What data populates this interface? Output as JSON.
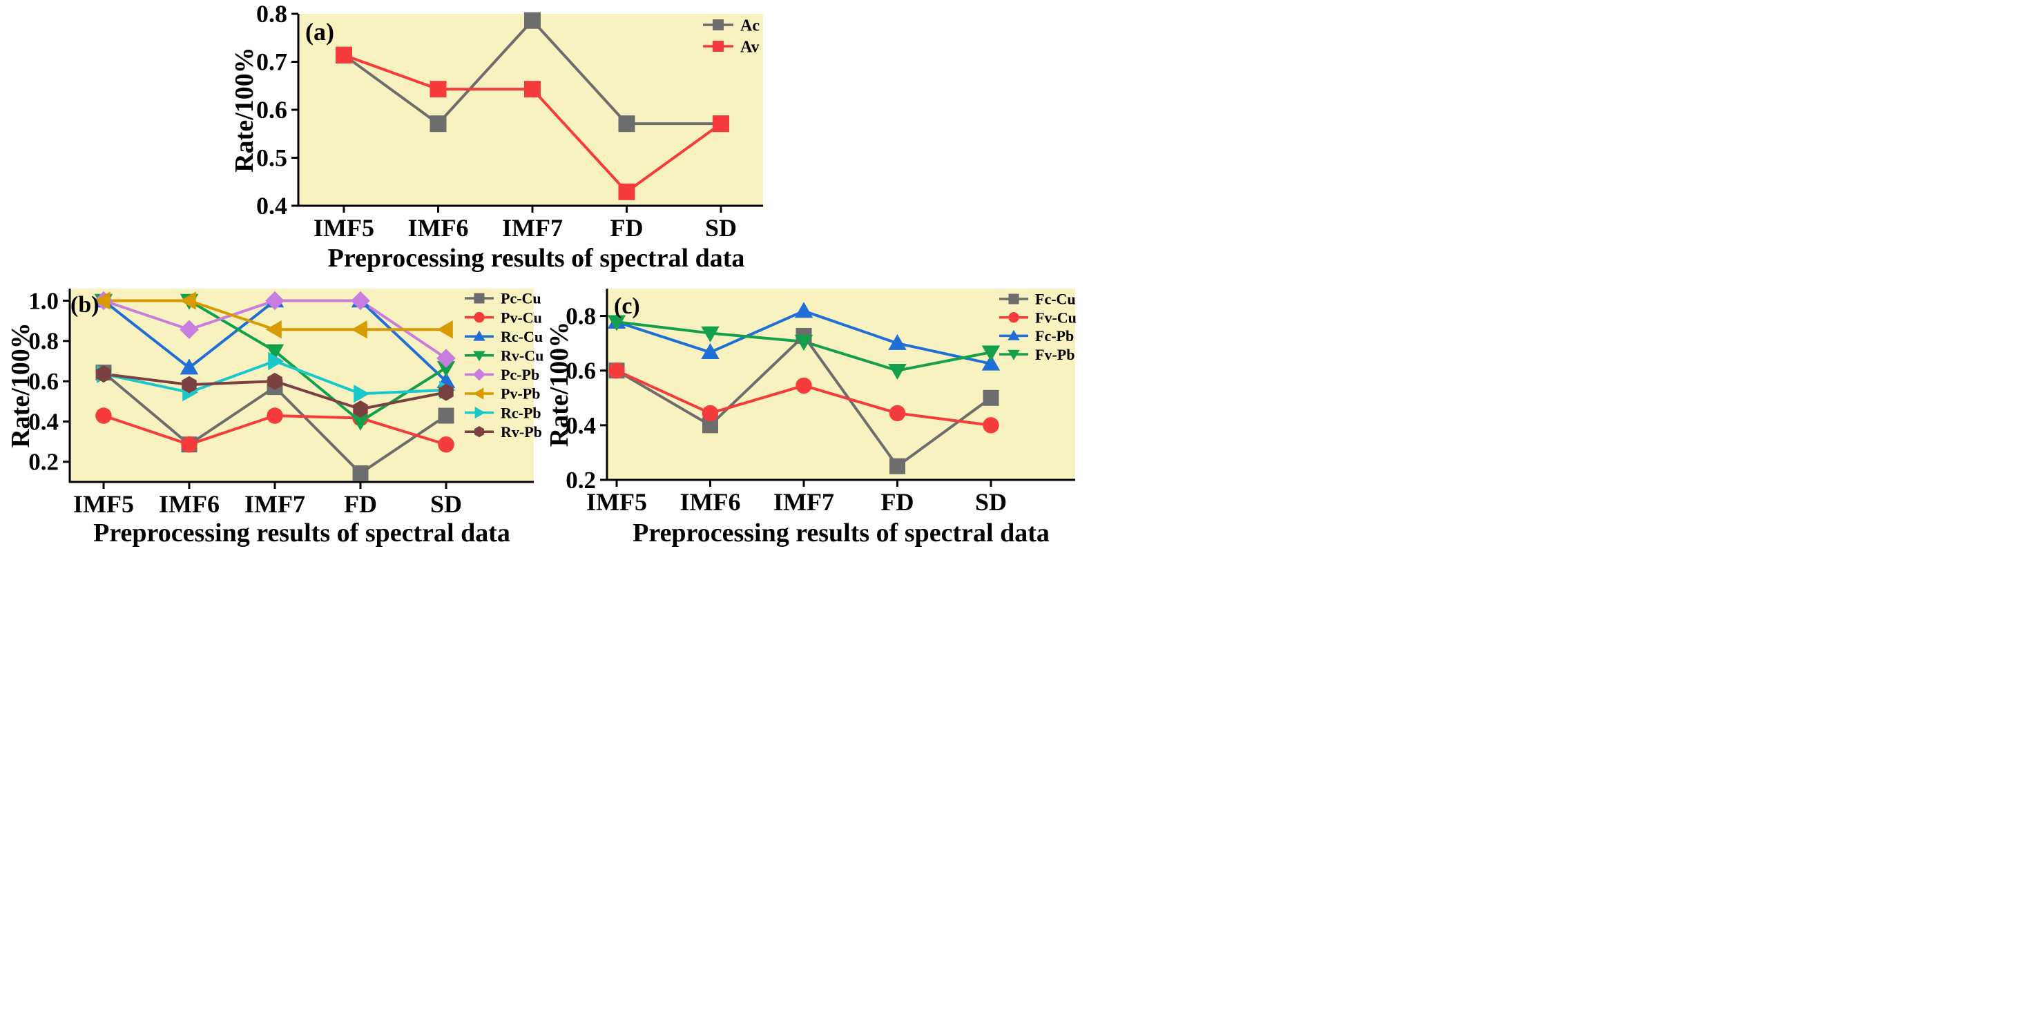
{
  "chart_data": [
    {
      "panel": "(a)",
      "type": "line",
      "xlabel": "Preprocessing results of spectral data",
      "ylabel": "Rate/100%",
      "categories": [
        "IMF5",
        "IMF6",
        "IMF7",
        "FD",
        "SD"
      ],
      "ylim": [
        0.4,
        0.8
      ],
      "yticks": [
        0.4,
        0.5,
        0.6,
        0.7,
        0.8
      ],
      "ytick_labels": [
        "0.4",
        "0.5",
        "0.6",
        "0.7",
        "0.8"
      ],
      "legend_position": "top-right",
      "background": "#f8f1c0",
      "series": [
        {
          "name": "Ac",
          "color": "#6d6d6d",
          "marker": "square",
          "values": [
            0.714,
            0.571,
            0.786,
            0.571,
            0.571
          ]
        },
        {
          "name": "Av",
          "color": "#f53b3b",
          "marker": "square",
          "values": [
            0.714,
            0.643,
            0.643,
            0.429,
            0.571
          ]
        }
      ]
    },
    {
      "panel": "(b)",
      "type": "line",
      "xlabel": "Preprocessing results of spectral data",
      "ylabel": "Rate/100%",
      "categories": [
        "IMF5",
        "IMF6",
        "IMF7",
        "FD",
        "SD"
      ],
      "ylim": [
        0.1,
        1.06
      ],
      "yticks": [
        0.2,
        0.4,
        0.6,
        0.8,
        1.0
      ],
      "ytick_labels": [
        "0.2",
        "0.4",
        "0.6",
        "0.8",
        "1.0"
      ],
      "legend_position": "top-right",
      "background": "#f8f1c0",
      "series": [
        {
          "name": "Pc-Cu",
          "color": "#6d6d6d",
          "marker": "square",
          "values": [
            0.643,
            0.286,
            0.571,
            0.143,
            0.429
          ]
        },
        {
          "name": "Pv-Cu",
          "color": "#f53b3b",
          "marker": "circle",
          "values": [
            0.429,
            0.286,
            0.429,
            0.417,
            0.286
          ]
        },
        {
          "name": "Rc-Cu",
          "color": "#1f6fd6",
          "marker": "triangle-up",
          "values": [
            1.0,
            0.667,
            1.0,
            1.0,
            0.6
          ]
        },
        {
          "name": "Rv-Cu",
          "color": "#14a04a",
          "marker": "triangle-down",
          "values": [
            1.0,
            1.0,
            0.75,
            0.4,
            0.667
          ]
        },
        {
          "name": "Pc-Pb",
          "color": "#c77ee0",
          "marker": "diamond",
          "values": [
            1.0,
            0.857,
            1.0,
            1.0,
            0.714
          ]
        },
        {
          "name": "Pv-Pb",
          "color": "#d99a00",
          "marker": "triangle-left",
          "values": [
            1.0,
            1.0,
            0.857,
            0.857,
            0.857
          ]
        },
        {
          "name": "Rc-Pb",
          "color": "#19c7cc",
          "marker": "triangle-right",
          "values": [
            0.636,
            0.545,
            0.7,
            0.538,
            0.556
          ]
        },
        {
          "name": "Rv-Pb",
          "color": "#7b4040",
          "marker": "hexagon",
          "values": [
            0.636,
            0.583,
            0.6,
            0.462,
            0.545
          ]
        }
      ]
    },
    {
      "panel": "(c)",
      "type": "line",
      "xlabel": "Preprocessing results of spectral data",
      "ylabel": "Rate/100%",
      "categories": [
        "IMF5",
        "IMF6",
        "IMF7",
        "FD",
        "SD"
      ],
      "ylim": [
        0.2,
        0.9
      ],
      "yticks": [
        0.2,
        0.4,
        0.6,
        0.8
      ],
      "ytick_labels": [
        "0.2",
        "0.4",
        "0.6",
        "0.8"
      ],
      "legend_position": "top-right",
      "background": "#f8f1c0",
      "series": [
        {
          "name": "Fc-Cu",
          "color": "#6d6d6d",
          "marker": "square",
          "values": [
            0.6,
            0.4,
            0.727,
            0.25,
            0.5
          ]
        },
        {
          "name": "Fv-Cu",
          "color": "#f53b3b",
          "marker": "circle",
          "values": [
            0.6,
            0.444,
            0.545,
            0.444,
            0.4
          ]
        },
        {
          "name": "Fc-Pb",
          "color": "#1f6fd6",
          "marker": "triangle-up",
          "values": [
            0.778,
            0.667,
            0.818,
            0.7,
            0.625
          ]
        },
        {
          "name": "Fv-Pb",
          "color": "#14a04a",
          "marker": "triangle-down",
          "values": [
            0.778,
            0.737,
            0.706,
            0.6,
            0.667
          ]
        }
      ]
    }
  ]
}
